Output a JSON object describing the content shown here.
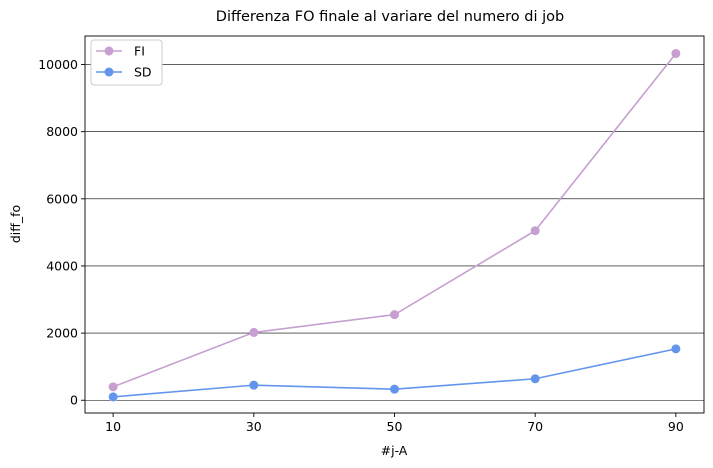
{
  "chart_data": {
    "type": "line",
    "title": "Differenza FO finale al variare del numero di job",
    "xlabel": "#j-A",
    "ylabel": "diff_fo",
    "x": [
      10,
      30,
      50,
      70,
      90
    ],
    "x_ticks": [
      "10",
      "30",
      "50",
      "70",
      "90"
    ],
    "y_ticks": [
      0,
      2000,
      4000,
      6000,
      8000,
      10000
    ],
    "y_tick_labels": [
      "0",
      "2000",
      "4000",
      "6000",
      "8000",
      "10000"
    ],
    "xlim": [
      6,
      94
    ],
    "ylim": [
      -380,
      10850
    ],
    "grid": "horizontal",
    "legend_position": "top-left",
    "series": [
      {
        "name": "FI",
        "color": "#c79fd0",
        "values": [
          400,
          2020,
          2550,
          5050,
          10330
        ]
      },
      {
        "name": "SD",
        "color": "#6495ed",
        "values": [
          100,
          450,
          330,
          640,
          1530
        ]
      }
    ]
  }
}
